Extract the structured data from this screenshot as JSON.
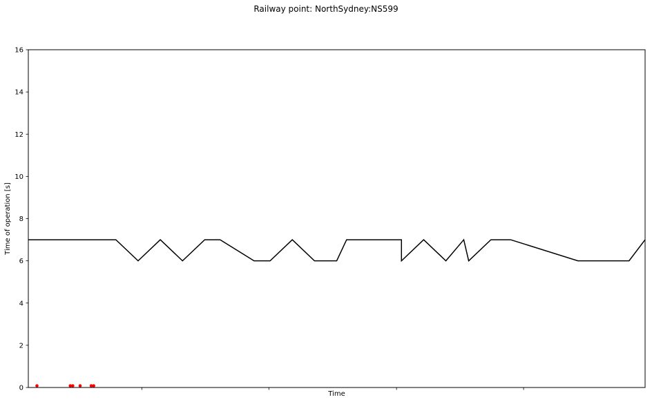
{
  "chart_data": {
    "type": "line",
    "title": "Railway point: NorthSydney:NS599",
    "xlabel": "Time",
    "ylabel": "Time of operation [s]",
    "ylim": [
      0,
      16
    ],
    "yticks": [
      0,
      2,
      4,
      6,
      8,
      10,
      12,
      14,
      16
    ],
    "xlim": [
      0,
      100
    ],
    "xticks": [
      18.4,
      39.0,
      59.7,
      80.3
    ],
    "grid": false,
    "series": [
      {
        "style": "line",
        "color": "#000000",
        "points": [
          [
            0.0,
            7
          ],
          [
            14.2,
            7
          ],
          [
            17.8,
            6
          ],
          [
            21.4,
            7
          ],
          [
            25.0,
            6
          ],
          [
            28.6,
            7
          ],
          [
            31.1,
            7
          ],
          [
            36.6,
            6
          ],
          [
            39.2,
            6
          ],
          [
            42.8,
            7
          ],
          [
            46.4,
            6
          ],
          [
            50.0,
            6
          ],
          [
            51.6,
            7
          ],
          [
            60.5,
            7
          ],
          [
            60.5,
            6
          ],
          [
            64.1,
            7
          ],
          [
            67.7,
            6
          ],
          [
            70.6,
            7
          ],
          [
            71.4,
            6
          ],
          [
            75.0,
            7
          ],
          [
            78.2,
            7
          ],
          [
            89.1,
            6
          ],
          [
            97.4,
            6
          ],
          [
            100.0,
            7
          ]
        ]
      },
      {
        "style": "points",
        "color": "#ff0000",
        "points": [
          [
            1.4,
            0.08
          ],
          [
            6.8,
            0.08
          ],
          [
            7.2,
            0.08
          ],
          [
            8.4,
            0.08
          ],
          [
            10.2,
            0.08
          ],
          [
            10.6,
            0.08
          ]
        ]
      }
    ]
  }
}
